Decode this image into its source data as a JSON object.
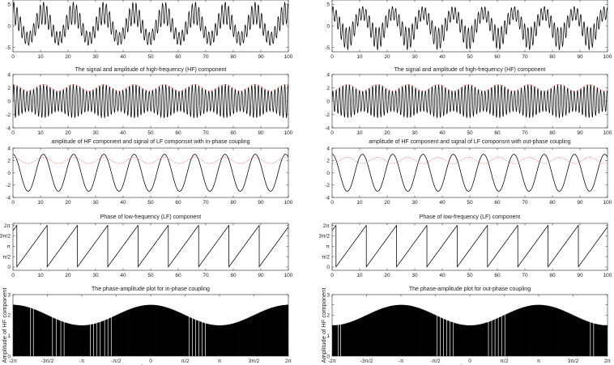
{
  "colors": {
    "signal": "#000000",
    "envelope": "#ff6f6f",
    "axis": "#262626",
    "bars": "#000000",
    "background": "#ffffff"
  },
  "chart_data": [
    {
      "id": "left-1",
      "type": "line",
      "title": "",
      "xlabel": "",
      "ylabel": "",
      "xlim": [
        0,
        100
      ],
      "ylim": [
        -6,
        6
      ],
      "xticks": [
        0,
        10,
        20,
        30,
        40,
        50,
        60,
        70,
        80,
        90,
        100
      ],
      "yticks": [
        -5,
        0,
        5
      ],
      "series": [
        {
          "role": "signal",
          "formula": "(2 + 0.5*cos(2*pi*x/11)) * sin(2*pi*x/1.2) + 3*cos(2*pi*x/11)",
          "samples": 1600
        }
      ]
    },
    {
      "id": "left-2",
      "type": "line",
      "title": "The signal and amplitude of high-frequency (HF) component",
      "xlabel": "",
      "ylabel": "",
      "xlim": [
        0,
        100
      ],
      "ylim": [
        -4,
        4
      ],
      "xticks": [
        0,
        10,
        20,
        30,
        40,
        50,
        60,
        70,
        80,
        90,
        100
      ],
      "yticks": [
        -4,
        -2,
        0,
        2,
        4
      ],
      "series": [
        {
          "role": "signal",
          "formula": "(2 + 0.5*cos(2*pi*x/11)) * sin(2*pi*x/1.2)",
          "samples": 1600
        },
        {
          "role": "envelope",
          "formula": "2 + 0.5*cos(2*pi*x/11)",
          "samples": 400
        }
      ]
    },
    {
      "id": "left-3",
      "type": "line",
      "title": "amplitude of HF component and signal of LF componsnt with in-phase coupling",
      "xlabel": "",
      "ylabel": "",
      "xlim": [
        0,
        100
      ],
      "ylim": [
        -4,
        4
      ],
      "xticks": [
        0,
        10,
        20,
        30,
        40,
        50,
        60,
        70,
        80,
        90,
        100
      ],
      "yticks": [
        -4,
        -2,
        0,
        2,
        4
      ],
      "series": [
        {
          "role": "signal",
          "formula": "3*cos(2*pi*x/11)",
          "samples": 600
        },
        {
          "role": "envelope",
          "formula": "2 + 0.5*cos(2*pi*x/11)",
          "samples": 400
        }
      ]
    },
    {
      "id": "left-4",
      "type": "line",
      "title": "Phase of low-frequency (LF) component",
      "xlabel": "",
      "ylabel": "",
      "xlim": [
        0,
        100
      ],
      "ylim": [
        -0.5,
        6.6
      ],
      "xticks": [
        0,
        10,
        20,
        30,
        40,
        50,
        60,
        70,
        80,
        90,
        100
      ],
      "yticks": [
        0,
        1.5708,
        3.1416,
        4.7124,
        6.2832
      ],
      "yticklabels": [
        "0",
        "π/2",
        "π",
        "3π/2",
        "2π"
      ],
      "series": [
        {
          "role": "signal",
          "formula": "mod(2*pi*x/11 + 5.5, 2*pi)",
          "samples": 1200
        }
      ]
    },
    {
      "id": "left-5",
      "type": "bar",
      "title": "The phase-amplitude plot for in-phase coupling",
      "xlabel": "Phase of LF component",
      "ylabel": "Amplitude of HF component",
      "xlim": [
        -6.2832,
        6.2832
      ],
      "ylim": [
        0,
        3
      ],
      "xticks": [
        -6.2832,
        -4.7124,
        -3.1416,
        -1.5708,
        0,
        1.5708,
        3.1416,
        4.7124,
        6.2832
      ],
      "xticklabels": [
        "-2π",
        "-3π/2",
        "-π",
        "-π/2",
        "0",
        "π/2",
        "π",
        "3π/2",
        "2π"
      ],
      "yticks": [
        0,
        0.5,
        1,
        1.5,
        2,
        2.5,
        3
      ],
      "yticklabels": [
        "0",
        "",
        "1",
        "",
        "2",
        "",
        "3"
      ],
      "bar_formula": "2 + 0.5*cos(x)",
      "gaps": [
        -5.48,
        -5.35,
        -4.48,
        -4.3,
        -4.1,
        -3.95,
        -2.75,
        -2.6,
        -2.45,
        -2.3,
        -2.1,
        -1.95,
        -1.8,
        1.75,
        1.9,
        2.05,
        2.2,
        2.35,
        2.5
      ]
    },
    {
      "id": "right-1",
      "type": "line",
      "title": "",
      "xlabel": "",
      "ylabel": "",
      "xlim": [
        0,
        100
      ],
      "ylim": [
        -6,
        6
      ],
      "xticks": [
        0,
        10,
        20,
        30,
        40,
        50,
        60,
        70,
        80,
        90,
        100
      ],
      "yticks": [
        -5,
        0,
        5
      ],
      "series": [
        {
          "role": "signal",
          "formula": "(2 - 0.5*cos(2*pi*x/11)) * sin(2*pi*x/1.2) + 3*cos(2*pi*x/11)",
          "samples": 1600
        }
      ]
    },
    {
      "id": "right-2",
      "type": "line",
      "title": "The signal and amplitude of high-frequency (HF) component",
      "xlabel": "",
      "ylabel": "",
      "xlim": [
        0,
        100
      ],
      "ylim": [
        -4,
        4
      ],
      "xticks": [
        0,
        10,
        20,
        30,
        40,
        50,
        60,
        70,
        80,
        90,
        100
      ],
      "yticks": [
        -4,
        -2,
        0,
        2,
        4
      ],
      "series": [
        {
          "role": "signal",
          "formula": "(2 - 0.5*cos(2*pi*x/11)) * sin(2*pi*x/1.2)",
          "samples": 1600
        },
        {
          "role": "envelope",
          "formula": "2 - 0.5*cos(2*pi*x/11)",
          "samples": 400
        }
      ]
    },
    {
      "id": "right-3",
      "type": "line",
      "title": "amplitude of HF component and signal of LF componsnt with out-phase coupling",
      "xlabel": "",
      "ylabel": "",
      "xlim": [
        0,
        100
      ],
      "ylim": [
        -4,
        4
      ],
      "xticks": [
        0,
        10,
        20,
        30,
        40,
        50,
        60,
        70,
        80,
        90,
        100
      ],
      "yticks": [
        -4,
        -2,
        0,
        2,
        4
      ],
      "series": [
        {
          "role": "signal",
          "formula": "3*cos(2*pi*x/11)",
          "samples": 600
        },
        {
          "role": "envelope",
          "formula": "2 - 0.5*cos(2*pi*x/11)",
          "samples": 400
        }
      ]
    },
    {
      "id": "right-4",
      "type": "line",
      "title": "Phase of low-frequency (LF) component",
      "xlabel": "",
      "ylabel": "",
      "xlim": [
        0,
        100
      ],
      "ylim": [
        -0.5,
        6.6
      ],
      "xticks": [
        0,
        10,
        20,
        30,
        40,
        50,
        60,
        70,
        80,
        90,
        100
      ],
      "yticks": [
        0,
        1.5708,
        3.1416,
        4.7124,
        6.2832
      ],
      "yticklabels": [
        "0",
        "π/2",
        "π",
        "3π/2",
        "2π"
      ],
      "series": [
        {
          "role": "signal",
          "formula": "mod(2*pi*x/11 + 5.5, 2*pi)",
          "samples": 1200
        }
      ]
    },
    {
      "id": "right-5",
      "type": "bar",
      "title": "The phase-amplitude plot for out-phase coupling",
      "xlabel": "Phase of LF component",
      "ylabel": "Amplitude of HF component",
      "xlim": [
        -6.2832,
        6.2832
      ],
      "ylim": [
        0,
        3
      ],
      "xticks": [
        -6.2832,
        -4.7124,
        -3.1416,
        -1.5708,
        0,
        1.5708,
        3.1416,
        4.7124,
        6.2832
      ],
      "xticklabels": [
        "-2π",
        "-3π/2",
        "-π",
        "-π/2",
        "0",
        "π/2",
        "π",
        "3π/2",
        "2π"
      ],
      "yticks": [
        0,
        0.5,
        1,
        1.5,
        2,
        2.5,
        3
      ],
      "yticklabels": [
        "0",
        "",
        "1",
        "",
        "2",
        "",
        "3"
      ],
      "bar_formula": "2 - 0.5*cos(x)",
      "gaps": [
        -6.0,
        -5.9,
        -1.5,
        -1.35,
        -1.2,
        -1.05,
        -0.9,
        -0.75,
        0.85,
        1.0,
        1.15,
        1.3,
        1.45,
        1.6,
        5.5,
        5.65
      ]
    }
  ]
}
